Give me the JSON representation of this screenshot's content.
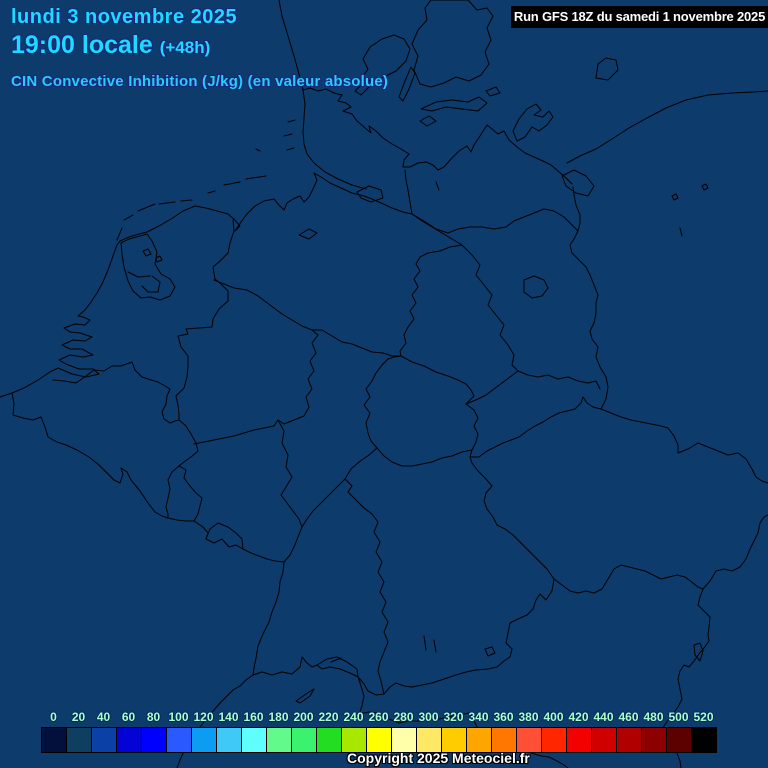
{
  "header": {
    "date_line": "lundi 3 novembre 2025",
    "time_line": "19:00 locale",
    "offset_label": "(+48h)",
    "variable_label": "CIN Convective Inhibition (J/kg) (en valeur absolue)",
    "run_label": "Run GFS 18Z du samedi 1 novembre 2025"
  },
  "footer": {
    "copyright": "Copyright 2025 Meteociel.fr"
  },
  "colors": {
    "background": "#0d3b6b",
    "border_line": "#000000",
    "title_text": "#1bdcff",
    "title_outline": "#19287d",
    "variable_text": "#28ccf8",
    "tick_text": "#aaffcc",
    "tick_outline": "#002a55",
    "run_box_bg": "#000000",
    "run_box_text": "#ffffff",
    "copyright_text": "#ffffff"
  },
  "scale": {
    "ticks": [
      "0",
      "20",
      "40",
      "60",
      "80",
      "100",
      "120",
      "140",
      "160",
      "180",
      "200",
      "220",
      "240",
      "260",
      "280",
      "300",
      "320",
      "340",
      "360",
      "380",
      "400",
      "420",
      "440",
      "460",
      "480",
      "500",
      "520"
    ],
    "colors": [
      "#04103c",
      "#0e3e60",
      "#0b41a7",
      "#0303d6",
      "#0000ff",
      "#2a5aff",
      "#0c9cf2",
      "#3ec9f7",
      "#5fffff",
      "#63fa8c",
      "#3bf26e",
      "#22dd22",
      "#a8e800",
      "#ffff00",
      "#ffffaa",
      "#ffe866",
      "#ffcc00",
      "#ffa500",
      "#ff7700",
      "#ff5035",
      "#ff2600",
      "#f30000",
      "#d00000",
      "#b00000",
      "#8c0000",
      "#5c0000",
      "#000000"
    ]
  }
}
